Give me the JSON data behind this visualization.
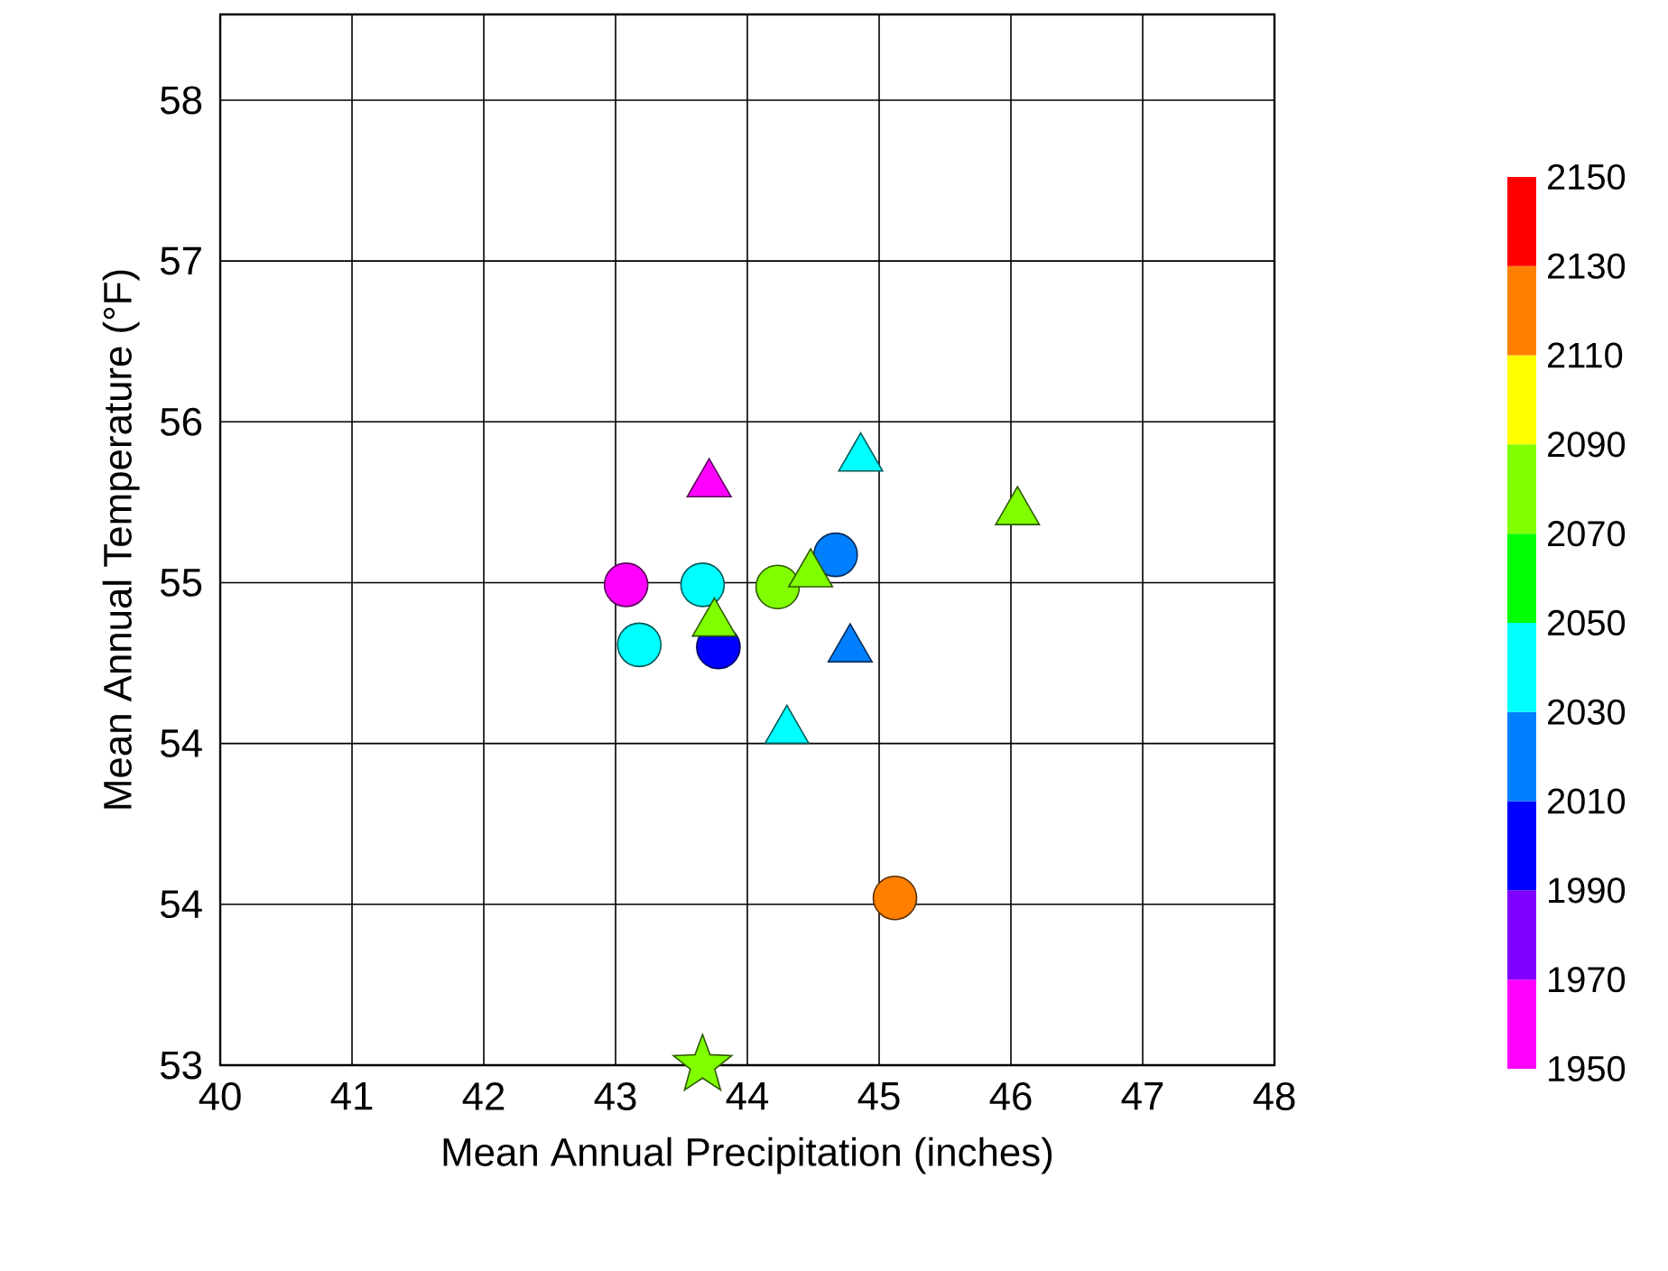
{
  "chart_data": {
    "type": "scatter",
    "xlabel": "Mean Annual Precipitation (inches)",
    "ylabel": "Mean Annual Temperature (°F)",
    "xlim": [
      40,
      48
    ],
    "xticks": [
      40,
      41,
      42,
      43,
      44,
      45,
      46,
      47,
      48
    ],
    "ylim": [
      53,
      57.9
    ],
    "yticks": [
      53,
      {
        "value": 53.75,
        "label": "54"
      },
      {
        "value": 54.5,
        "label": "54"
      },
      {
        "value": 55.25,
        "label": "55"
      },
      {
        "value": 56,
        "label": "56"
      },
      {
        "value": 56.75,
        "label": "57"
      },
      {
        "value": 57.5,
        "label": "58"
      }
    ],
    "grid": true,
    "clim": [
      1950,
      2150
    ],
    "cticks": [
      1950,
      1970,
      1990,
      2010,
      2030,
      2050,
      2070,
      2090,
      2110,
      2130,
      2150
    ],
    "series": [
      {
        "marker": "circle",
        "x": [
          43.08,
          43.18,
          43.66,
          43.78,
          44.23,
          44.67,
          45.12
        ],
        "values": [
          55.24,
          54.96,
          55.24,
          54.95,
          55.23,
          55.38,
          53.78
        ],
        "cvalues": [
          1960,
          2040,
          2040,
          2000,
          2080,
          2020,
          2120
        ],
        "colors": [
          "#ff00ff",
          "#00ffff",
          "#00ffff",
          "#0000ff",
          "#80ff00",
          "#0080ff",
          "#ff8000"
        ]
      },
      {
        "marker": "triangle",
        "x": [
          43.71,
          43.75,
          44.3,
          44.48,
          44.78,
          44.86,
          46.05
        ],
        "values": [
          55.71,
          55.06,
          54.56,
          55.29,
          54.94,
          55.83,
          55.58
        ],
        "cvalues": [
          1960,
          2080,
          2040,
          2080,
          2020,
          2040,
          2080
        ],
        "colors": [
          "#ff00ff",
          "#80ff00",
          "#00ffff",
          "#80ff00",
          "#0080ff",
          "#00ffff",
          "#80ff00"
        ]
      },
      {
        "marker": "star",
        "x": [
          43.66
        ],
        "values": [
          53.0
        ],
        "cvalues": [
          2080
        ],
        "color": "#80ff00"
      }
    ]
  }
}
